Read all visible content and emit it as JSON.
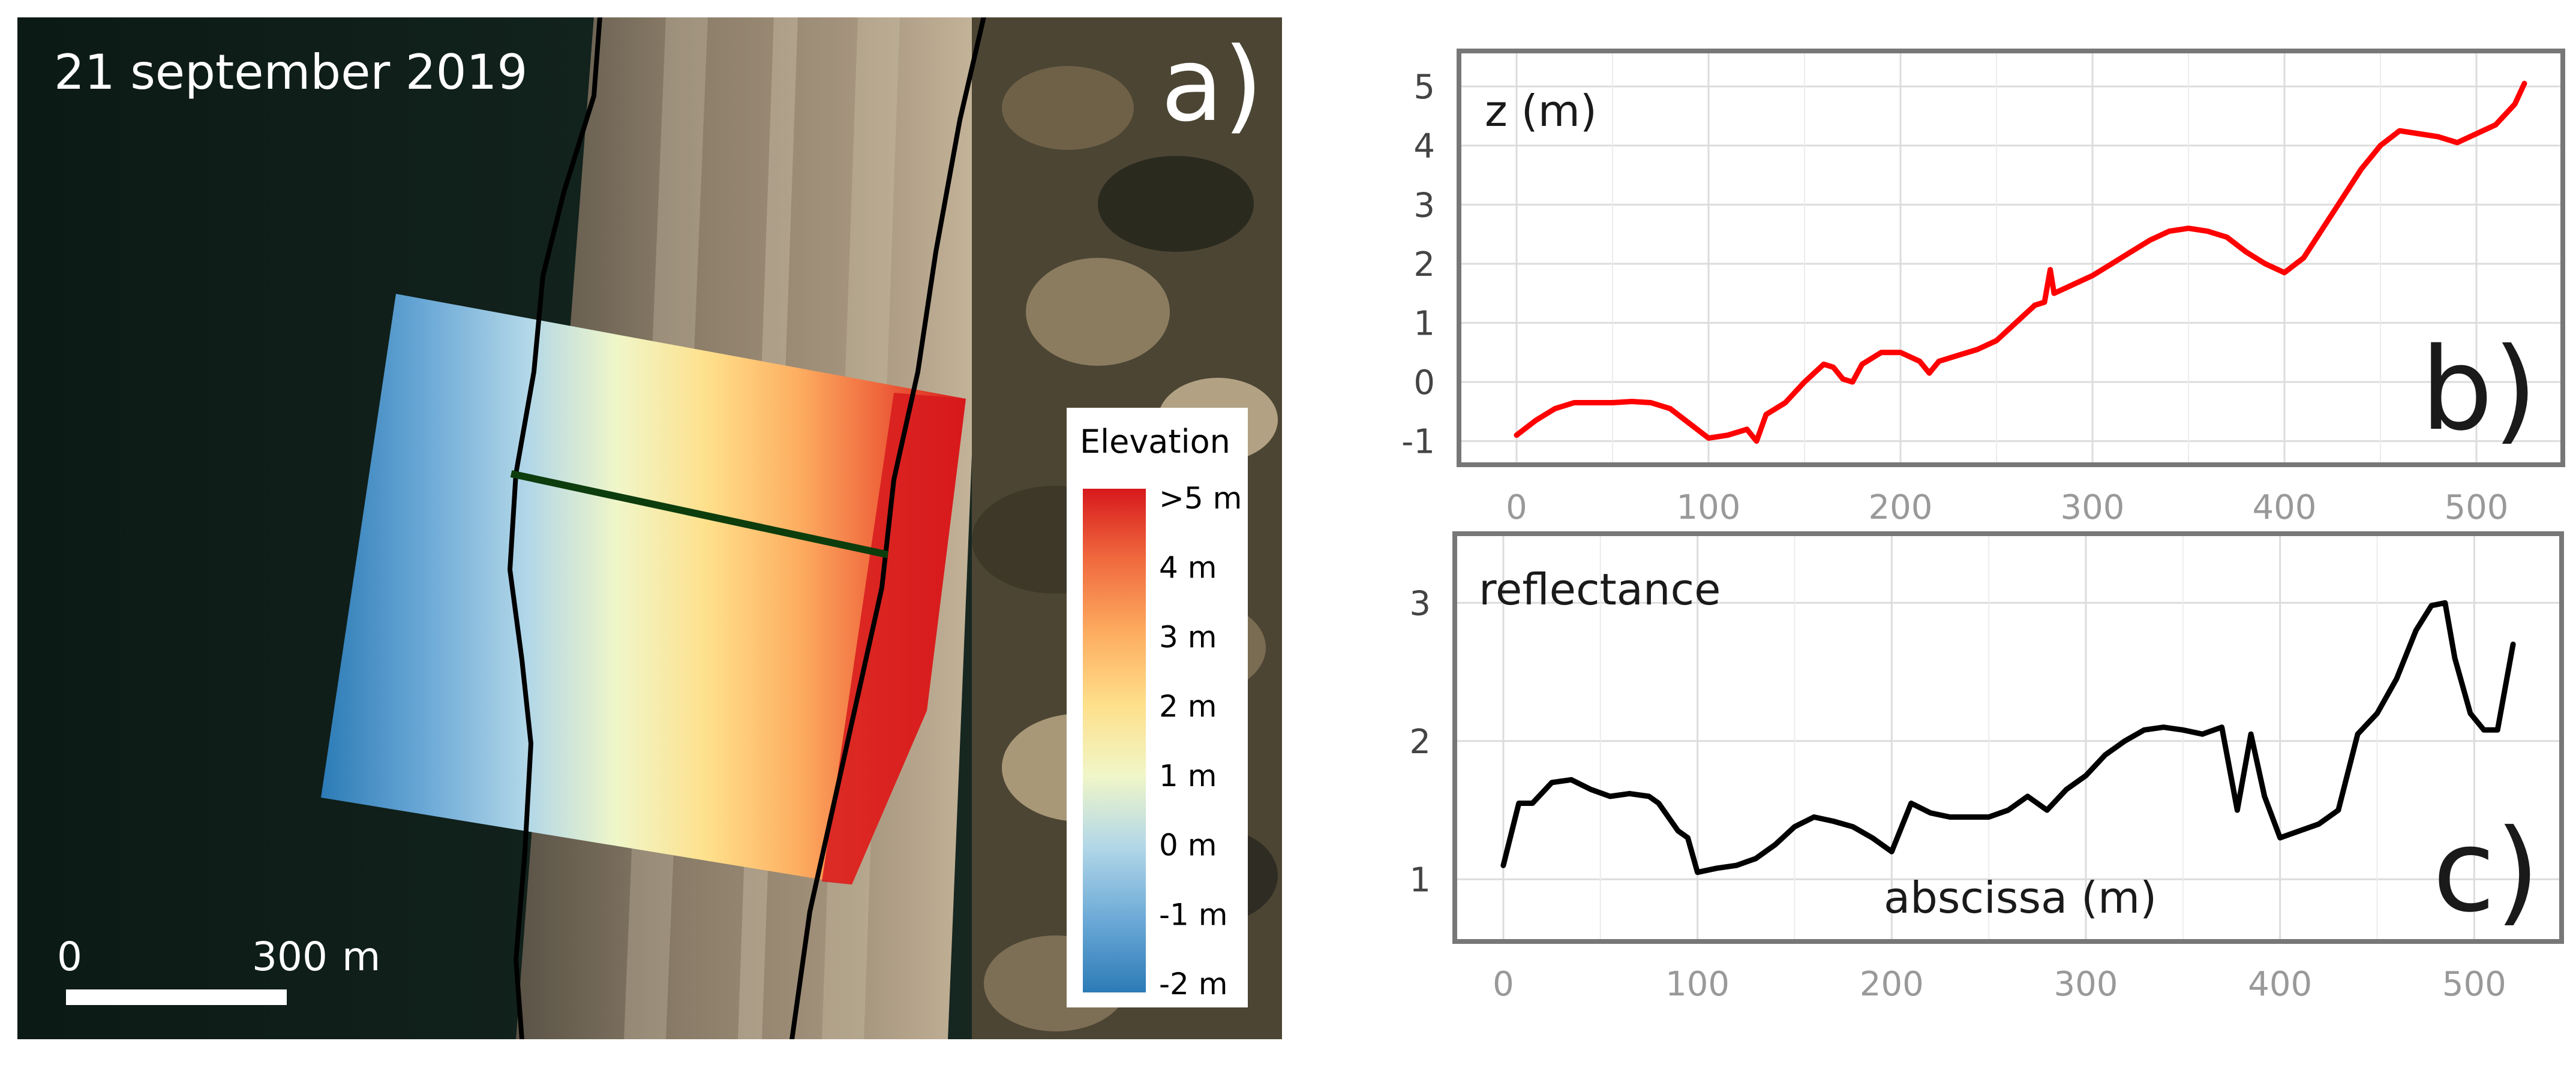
{
  "colors": {
    "elev_m2": "#2c7bb6",
    "elev_m1": "#6aa8d6",
    "elev_0": "#b2d7e8",
    "elev_1": "#f0f6c8",
    "elev_2": "#fee08b",
    "elev_3": "#fdae61",
    "elev_4": "#f06a3e",
    "elev_5": "#d7191c",
    "profile_b": "#ff0000",
    "profile_c": "#000000",
    "transect": "#0d3d0d"
  },
  "map": {
    "panel_label": "a)",
    "date": "21 september 2019",
    "scale_zero": "0",
    "scale_value": "300",
    "scale_unit": "m",
    "legend": {
      "title": "Elevation",
      "labels": [
        ">5 m",
        "4 m",
        "3 m",
        "2 m",
        "1 m",
        "0 m",
        "-1 m",
        "-2 m"
      ]
    }
  },
  "chart_data": [
    {
      "type": "line",
      "panel_label": "b)",
      "ylabel": "z (m)",
      "xlabel": "",
      "xlim": [
        -30,
        545
      ],
      "ylim": [
        -1.4,
        5.6
      ],
      "xticks": [
        0,
        100,
        200,
        300,
        400,
        500
      ],
      "yticks": [
        -1,
        0,
        1,
        2,
        3,
        4,
        5
      ],
      "grid": true,
      "series": [
        {
          "x": [
            0,
            10,
            20,
            30,
            40,
            50,
            60,
            70,
            80,
            90,
            100,
            110,
            120,
            125,
            130,
            140,
            150,
            160,
            165,
            170,
            175,
            180,
            190,
            200,
            210,
            215,
            220,
            230,
            240,
            250,
            260,
            270,
            275,
            278,
            280,
            290,
            300,
            310,
            320,
            330,
            340,
            350,
            360,
            370,
            380,
            390,
            400,
            410,
            420,
            430,
            440,
            450,
            460,
            470,
            480,
            490,
            500,
            510,
            520,
            525
          ],
          "y": [
            -0.9,
            -0.65,
            -0.45,
            -0.35,
            -0.35,
            -0.35,
            -0.33,
            -0.35,
            -0.45,
            -0.7,
            -0.95,
            -0.9,
            -0.8,
            -1.0,
            -0.55,
            -0.35,
            0.0,
            0.3,
            0.25,
            0.05,
            0.0,
            0.3,
            0.5,
            0.5,
            0.35,
            0.15,
            0.35,
            0.45,
            0.55,
            0.7,
            1.0,
            1.3,
            1.35,
            1.9,
            1.5,
            1.65,
            1.8,
            2.0,
            2.2,
            2.4,
            2.55,
            2.6,
            2.55,
            2.45,
            2.2,
            2.0,
            1.85,
            2.1,
            2.6,
            3.1,
            3.6,
            4.0,
            4.25,
            4.2,
            4.15,
            4.05,
            4.2,
            4.35,
            4.7,
            5.05
          ]
        }
      ]
    },
    {
      "type": "line",
      "panel_label": "c)",
      "ylabel": "reflectance",
      "xlabel": "abscissa (m)",
      "xlim": [
        -25,
        545
      ],
      "ylim": [
        0.55,
        3.5
      ],
      "xticks": [
        0,
        100,
        200,
        300,
        400,
        500
      ],
      "yticks": [
        1,
        2,
        3
      ],
      "grid": true,
      "series": [
        {
          "x": [
            0,
            8,
            15,
            25,
            35,
            45,
            55,
            65,
            75,
            80,
            90,
            95,
            100,
            110,
            120,
            130,
            140,
            150,
            160,
            170,
            180,
            190,
            200,
            210,
            220,
            230,
            240,
            250,
            260,
            270,
            280,
            290,
            300,
            310,
            320,
            330,
            340,
            350,
            360,
            370,
            378,
            385,
            392,
            400,
            410,
            420,
            430,
            440,
            450,
            460,
            470,
            478,
            485,
            490,
            498,
            505,
            512,
            520
          ],
          "y": [
            1.1,
            1.55,
            1.55,
            1.7,
            1.72,
            1.65,
            1.6,
            1.62,
            1.6,
            1.55,
            1.35,
            1.3,
            1.05,
            1.08,
            1.1,
            1.15,
            1.25,
            1.38,
            1.45,
            1.42,
            1.38,
            1.3,
            1.2,
            1.55,
            1.48,
            1.45,
            1.45,
            1.45,
            1.5,
            1.6,
            1.5,
            1.65,
            1.75,
            1.9,
            2.0,
            2.08,
            2.1,
            2.08,
            2.05,
            2.1,
            1.5,
            2.05,
            1.6,
            1.3,
            1.35,
            1.4,
            1.5,
            2.05,
            2.2,
            2.45,
            2.8,
            2.98,
            3.0,
            2.6,
            2.2,
            2.08,
            2.08,
            2.7
          ]
        }
      ]
    }
  ]
}
